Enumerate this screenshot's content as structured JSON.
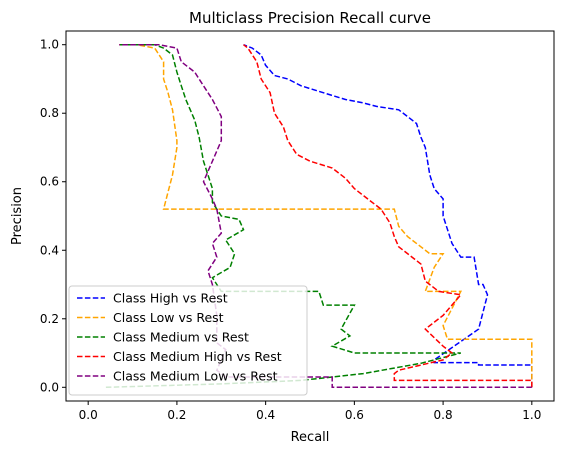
{
  "chart_data": {
    "type": "line",
    "title": "Multiclass Precision Recall curve",
    "xlabel": "Recall",
    "ylabel": "Precision",
    "xlim": [
      -0.05,
      1.05
    ],
    "ylim": [
      -0.04,
      1.04
    ],
    "xticks": [
      0.0,
      0.2,
      0.4,
      0.6,
      0.8,
      1.0
    ],
    "yticks": [
      0.0,
      0.2,
      0.4,
      0.6,
      0.8,
      1.0
    ],
    "xtick_labels": [
      "0.0",
      "0.2",
      "0.4",
      "0.6",
      "0.8",
      "1.0"
    ],
    "ytick_labels": [
      "0.0",
      "0.2",
      "0.4",
      "0.6",
      "0.8",
      "1.0"
    ],
    "grid": false,
    "legend_position": "lower-left",
    "series": [
      {
        "name": "Class High vs Rest",
        "color": "#0000ff",
        "dash": "dashed",
        "points": [
          [
            1.0,
            0.0
          ],
          [
            1.0,
            0.065
          ],
          [
            0.88,
            0.065
          ],
          [
            0.88,
            0.072
          ],
          [
            0.78,
            0.072
          ],
          [
            0.78,
            0.08
          ],
          [
            0.88,
            0.17
          ],
          [
            0.9,
            0.27
          ],
          [
            0.89,
            0.3
          ],
          [
            0.88,
            0.3
          ],
          [
            0.87,
            0.38
          ],
          [
            0.84,
            0.38
          ],
          [
            0.82,
            0.42
          ],
          [
            0.8,
            0.5
          ],
          [
            0.8,
            0.55
          ],
          [
            0.78,
            0.58
          ],
          [
            0.77,
            0.62
          ],
          [
            0.76,
            0.7
          ],
          [
            0.75,
            0.73
          ],
          [
            0.74,
            0.77
          ],
          [
            0.72,
            0.79
          ],
          [
            0.7,
            0.81
          ],
          [
            0.65,
            0.82
          ],
          [
            0.62,
            0.83
          ],
          [
            0.58,
            0.84
          ],
          [
            0.53,
            0.86
          ],
          [
            0.48,
            0.88
          ],
          [
            0.45,
            0.9
          ],
          [
            0.42,
            0.91
          ],
          [
            0.4,
            0.94
          ],
          [
            0.39,
            0.97
          ],
          [
            0.37,
            0.99
          ],
          [
            0.35,
            1.0
          ]
        ]
      },
      {
        "name": "Class Low vs Rest",
        "color": "#ffa500",
        "dash": "dashed",
        "points": [
          [
            1.0,
            0.0
          ],
          [
            1.0,
            0.14
          ],
          [
            0.81,
            0.14
          ],
          [
            0.8,
            0.18
          ],
          [
            0.84,
            0.28
          ],
          [
            0.76,
            0.28
          ],
          [
            0.78,
            0.35
          ],
          [
            0.8,
            0.39
          ],
          [
            0.77,
            0.39
          ],
          [
            0.75,
            0.41
          ],
          [
            0.72,
            0.44
          ],
          [
            0.7,
            0.47
          ],
          [
            0.69,
            0.52
          ],
          [
            0.17,
            0.52
          ],
          [
            0.19,
            0.62
          ],
          [
            0.2,
            0.7
          ],
          [
            0.2,
            0.72
          ],
          [
            0.19,
            0.81
          ],
          [
            0.18,
            0.86
          ],
          [
            0.17,
            0.9
          ],
          [
            0.17,
            0.95
          ],
          [
            0.15,
            0.99
          ],
          [
            0.11,
            1.0
          ],
          [
            0.07,
            1.0
          ]
        ]
      },
      {
        "name": "Class Medium vs Rest",
        "color": "#008000",
        "dash": "dashed",
        "points": [
          [
            0.04,
            0.0
          ],
          [
            0.3,
            0.01
          ],
          [
            0.48,
            0.02
          ],
          [
            0.62,
            0.04
          ],
          [
            0.75,
            0.07
          ],
          [
            0.84,
            0.1
          ],
          [
            0.6,
            0.1
          ],
          [
            0.55,
            0.12
          ],
          [
            0.59,
            0.15
          ],
          [
            0.57,
            0.17
          ],
          [
            0.6,
            0.24
          ],
          [
            0.53,
            0.24
          ],
          [
            0.52,
            0.28
          ],
          [
            0.3,
            0.28
          ],
          [
            0.28,
            0.32
          ],
          [
            0.32,
            0.35
          ],
          [
            0.33,
            0.39
          ],
          [
            0.31,
            0.43
          ],
          [
            0.35,
            0.46
          ],
          [
            0.34,
            0.49
          ],
          [
            0.3,
            0.5
          ],
          [
            0.28,
            0.54
          ],
          [
            0.28,
            0.58
          ],
          [
            0.26,
            0.66
          ],
          [
            0.25,
            0.73
          ],
          [
            0.24,
            0.78
          ],
          [
            0.22,
            0.84
          ],
          [
            0.21,
            0.88
          ],
          [
            0.2,
            0.92
          ],
          [
            0.19,
            0.97
          ],
          [
            0.17,
            0.99
          ],
          [
            0.15,
            1.0
          ],
          [
            0.07,
            1.0
          ]
        ]
      },
      {
        "name": "Class Medium High vs Rest",
        "color": "#ff0000",
        "dash": "dashed",
        "points": [
          [
            1.0,
            0.0
          ],
          [
            1.0,
            0.02
          ],
          [
            0.69,
            0.02
          ],
          [
            0.69,
            0.04
          ],
          [
            0.7,
            0.05
          ],
          [
            0.8,
            0.08
          ],
          [
            0.82,
            0.1
          ],
          [
            0.8,
            0.12
          ],
          [
            0.76,
            0.17
          ],
          [
            0.8,
            0.21
          ],
          [
            0.84,
            0.27
          ],
          [
            0.79,
            0.28
          ],
          [
            0.76,
            0.31
          ],
          [
            0.75,
            0.36
          ],
          [
            0.73,
            0.38
          ],
          [
            0.7,
            0.41
          ],
          [
            0.69,
            0.44
          ],
          [
            0.68,
            0.48
          ],
          [
            0.66,
            0.52
          ],
          [
            0.63,
            0.55
          ],
          [
            0.6,
            0.58
          ],
          [
            0.58,
            0.61
          ],
          [
            0.55,
            0.64
          ],
          [
            0.5,
            0.66
          ],
          [
            0.47,
            0.68
          ],
          [
            0.45,
            0.72
          ],
          [
            0.44,
            0.76
          ],
          [
            0.42,
            0.8
          ],
          [
            0.41,
            0.86
          ],
          [
            0.39,
            0.9
          ],
          [
            0.38,
            0.95
          ],
          [
            0.36,
            0.99
          ],
          [
            0.35,
            1.0
          ]
        ]
      },
      {
        "name": "Class Medium Low vs Rest",
        "color": "#800080",
        "dash": "dashed",
        "points": [
          [
            1.0,
            0.0
          ],
          [
            0.55,
            0.0
          ],
          [
            0.55,
            0.03
          ],
          [
            0.31,
            0.03
          ],
          [
            0.29,
            0.05
          ],
          [
            0.31,
            0.11
          ],
          [
            0.29,
            0.13
          ],
          [
            0.29,
            0.21
          ],
          [
            0.28,
            0.3
          ],
          [
            0.27,
            0.34
          ],
          [
            0.29,
            0.38
          ],
          [
            0.28,
            0.42
          ],
          [
            0.3,
            0.45
          ],
          [
            0.29,
            0.52
          ],
          [
            0.28,
            0.55
          ],
          [
            0.26,
            0.6
          ],
          [
            0.28,
            0.66
          ],
          [
            0.3,
            0.72
          ],
          [
            0.3,
            0.79
          ],
          [
            0.28,
            0.84
          ],
          [
            0.26,
            0.88
          ],
          [
            0.25,
            0.9
          ],
          [
            0.24,
            0.92
          ],
          [
            0.21,
            0.95
          ],
          [
            0.2,
            0.99
          ],
          [
            0.16,
            1.0
          ],
          [
            0.07,
            1.0
          ]
        ]
      }
    ]
  }
}
